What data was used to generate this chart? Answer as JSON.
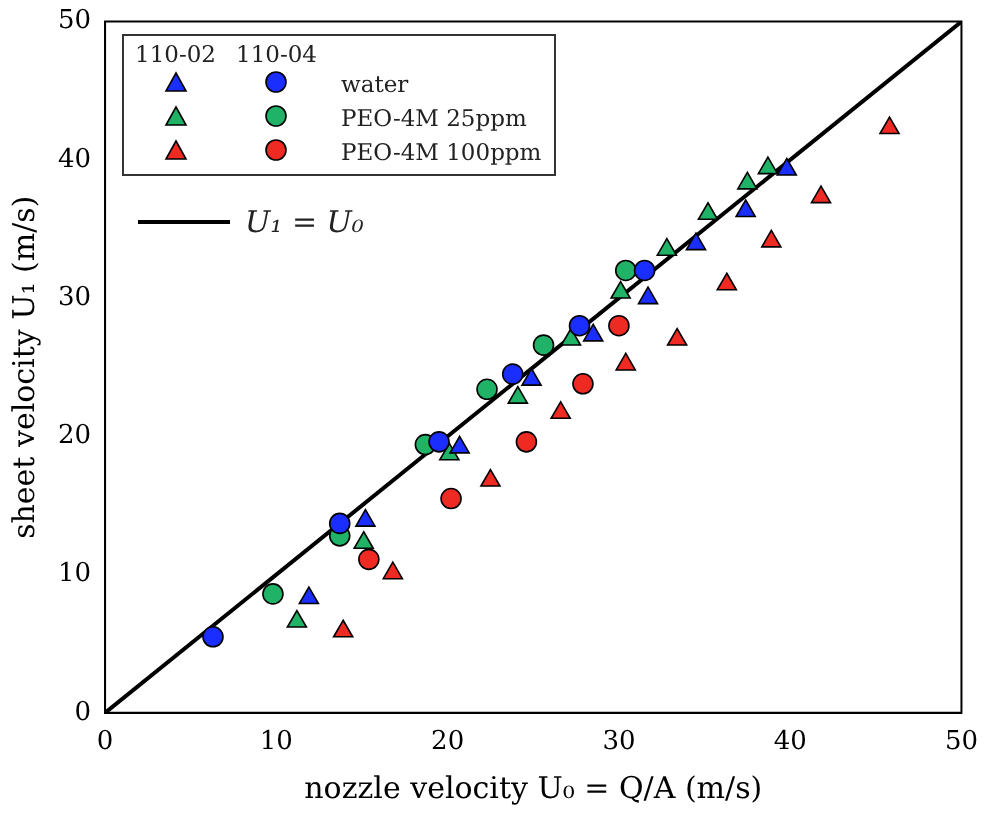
{
  "chart_data": {
    "type": "scatter",
    "xlabel": "nozzle velocity U₀ = Q/A (m/s)",
    "ylabel": "sheet velocity U₁ (m/s)",
    "xlim": [
      0,
      50
    ],
    "ylim": [
      0,
      50
    ],
    "xticks": [
      0,
      10,
      20,
      30,
      40,
      50
    ],
    "yticks": [
      0,
      10,
      20,
      30,
      40,
      50
    ],
    "grid": false,
    "legend": "top left",
    "annotations": [
      "110-02",
      "110-04"
    ],
    "series": [
      {
        "color": "#1a2fff",
        "marker": "triangle",
        "x": [
          11.9,
          15.2,
          20.7,
          24.9,
          28.5,
          31.7,
          34.5,
          37.4,
          39.8
        ],
        "values": [
          8.3,
          13.9,
          19.2,
          24.1,
          27.3,
          30.0,
          33.9,
          36.3,
          39.3
        ]
      },
      {
        "name": "water",
        "color": "#1a2fff",
        "marker": "circle",
        "x": [
          6.3,
          13.7,
          19.5,
          23.8,
          27.7,
          31.5
        ],
        "values": [
          5.5,
          13.7,
          19.6,
          24.5,
          28.0,
          32.0
        ]
      },
      {
        "color": "#20b266",
        "marker": "triangle",
        "x": [
          11.2,
          15.1,
          20.1,
          24.1,
          27.2,
          30.1,
          32.8,
          35.2,
          37.5,
          38.7
        ],
        "values": [
          6.6,
          12.3,
          18.7,
          22.8,
          27.0,
          30.4,
          33.5,
          36.1,
          38.3,
          39.4
        ]
      },
      {
        "name": "PEO-4M 25ppm",
        "color": "#20b266",
        "marker": "circle",
        "x": [
          9.8,
          13.7,
          18.7,
          22.3,
          25.6,
          30.4
        ],
        "values": [
          8.6,
          12.8,
          19.4,
          23.4,
          26.6,
          32.0
        ]
      },
      {
        "color": "#ee2a22",
        "marker": "triangle",
        "x": [
          13.9,
          16.8,
          22.5,
          26.6,
          30.4,
          33.4,
          36.3,
          38.9,
          41.8,
          45.8
        ],
        "values": [
          5.9,
          10.1,
          16.8,
          21.7,
          25.2,
          27.0,
          31.0,
          34.1,
          37.3,
          42.3
        ]
      },
      {
        "name": "PEO-4M 100ppm",
        "color": "#ee2a22",
        "marker": "circle",
        "x": [
          15.4,
          20.2,
          24.6,
          27.9,
          30.0
        ],
        "values": [
          11.1,
          15.5,
          19.6,
          23.8,
          28.0
        ]
      },
      {
        "name": "U₁ = U₀",
        "color": "#000000",
        "type": "line",
        "marker": "none",
        "line_style": "solid",
        "x": [
          0,
          50
        ],
        "values": [
          0,
          50
        ]
      }
    ]
  }
}
